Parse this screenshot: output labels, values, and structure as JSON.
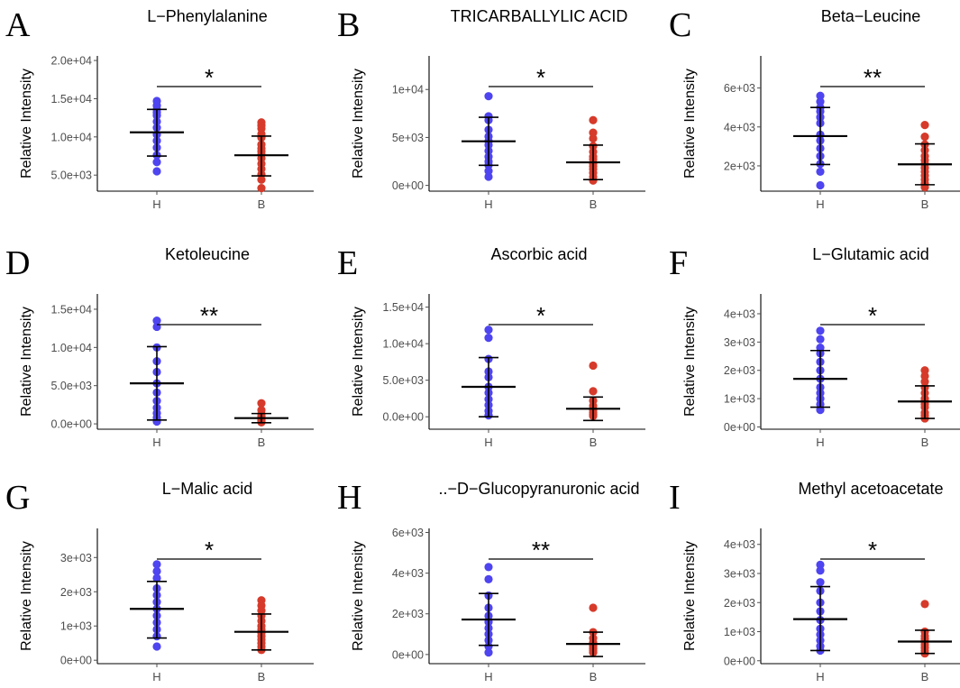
{
  "colors": {
    "H": "#4e44f0",
    "B": "#d63a2a",
    "axis": "#000000",
    "tick": "#4d4d4d"
  },
  "chart_data": [
    {
      "type": "scatter",
      "letter": "A",
      "title": "L−Phenylalanine",
      "xlabel": "",
      "ylabel": "Relative Intensity",
      "categories": [
        "H",
        "B"
      ],
      "ylim": [
        2900,
        20600
      ],
      "ticks": [
        5000,
        10000,
        15000,
        20000
      ],
      "tick_labels": [
        "5.0e+03",
        "1.0e+04",
        "1.5e+04",
        "2.0e+04"
      ],
      "significance": "*",
      "series": [
        {
          "name": "H",
          "mean": 10600,
          "sd_low": 7500,
          "sd_high": 13600,
          "values": [
            14700,
            14100,
            13600,
            13200,
            12800,
            12000,
            11200,
            10300,
            9500,
            8600,
            7600,
            6700,
            5500
          ]
        },
        {
          "name": "B",
          "mean": 7600,
          "sd_low": 4900,
          "sd_high": 10100,
          "values": [
            11900,
            11500,
            11100,
            10400,
            9900,
            9000,
            8500,
            8100,
            7700,
            7200,
            6500,
            5800,
            5100,
            4400,
            3300
          ]
        }
      ]
    },
    {
      "type": "scatter",
      "letter": "B",
      "title": "TRICARBALLYLIC ACID",
      "xlabel": "",
      "ylabel": "Relative Intensity",
      "categories": [
        "H",
        "B"
      ],
      "ylim": [
        -600,
        13500
      ],
      "ticks": [
        0,
        5000,
        10000
      ],
      "tick_labels": [
        "0e+00",
        "5e+03",
        "1e+04"
      ],
      "significance": "*",
      "series": [
        {
          "name": "H",
          "mean": 4600,
          "sd_low": 2100,
          "sd_high": 7100,
          "values": [
            9300,
            7200,
            6800,
            5800,
            5100,
            4600,
            4200,
            3600,
            3000,
            2500,
            2100,
            1500,
            900
          ]
        },
        {
          "name": "B",
          "mean": 2400,
          "sd_low": 600,
          "sd_high": 4200,
          "values": [
            6800,
            5500,
            4900,
            4100,
            3500,
            3000,
            2700,
            2300,
            2000,
            1700,
            1300,
            900,
            500
          ]
        }
      ]
    },
    {
      "type": "scatter",
      "letter": "C",
      "title": "Beta−Leucine",
      "xlabel": "",
      "ylabel": "Relative Intensity",
      "categories": [
        "H",
        "B"
      ],
      "ylim": [
        700,
        7650
      ],
      "ticks": [
        2000,
        4000,
        6000
      ],
      "tick_labels": [
        "2e+03",
        "4e+03",
        "6e+03"
      ],
      "significance": "**",
      "series": [
        {
          "name": "H",
          "mean": 3530,
          "sd_low": 2070,
          "sd_high": 5000,
          "values": [
            5600,
            5300,
            5000,
            4800,
            4500,
            4200,
            3600,
            3300,
            2900,
            2500,
            2100,
            1700,
            1000
          ]
        },
        {
          "name": "B",
          "mean": 2080,
          "sd_low": 1030,
          "sd_high": 3130,
          "values": [
            4100,
            3500,
            3100,
            2800,
            2500,
            2300,
            2100,
            1900,
            1700,
            1500,
            1300,
            1100,
            900
          ]
        }
      ]
    },
    {
      "type": "scatter",
      "letter": "D",
      "title": "Ketoleucine",
      "xlabel": "",
      "ylabel": "Relative Intensity",
      "categories": [
        "H",
        "B"
      ],
      "ylim": [
        -700,
        17000
      ],
      "ticks": [
        0,
        5000,
        10000,
        15000
      ],
      "tick_labels": [
        "0.0e+00",
        "5.0e+03",
        "1.0e+04",
        "1.5e+04"
      ],
      "significance": "**",
      "series": [
        {
          "name": "H",
          "mean": 5300,
          "sd_low": 500,
          "sd_high": 10100,
          "values": [
            13500,
            12700,
            10000,
            8200,
            6800,
            5300,
            4100,
            3000,
            2100,
            1400,
            800,
            300
          ]
        },
        {
          "name": "B",
          "mean": 750,
          "sd_low": 150,
          "sd_high": 1350,
          "values": [
            2700,
            1800,
            1300,
            1000,
            800,
            600,
            500,
            400,
            300,
            200
          ]
        }
      ]
    },
    {
      "type": "scatter",
      "letter": "E",
      "title": "Ascorbic acid",
      "xlabel": "",
      "ylabel": "Relative Intensity",
      "categories": [
        "H",
        "B"
      ],
      "ylim": [
        -1700,
        16800
      ],
      "ticks": [
        0,
        5000,
        10000,
        15000
      ],
      "tick_labels": [
        "0.0e+00",
        "5.0e+03",
        "1.0e+04",
        "1.5e+04"
      ],
      "significance": "*",
      "series": [
        {
          "name": "H",
          "mean": 4100,
          "sd_low": 0,
          "sd_high": 8100,
          "values": [
            11900,
            10800,
            7900,
            6200,
            5400,
            4100,
            3300,
            2400,
            1600,
            800,
            200
          ]
        },
        {
          "name": "B",
          "mean": 1100,
          "sd_low": -500,
          "sd_high": 2700,
          "values": [
            7000,
            3500,
            2200,
            1500,
            1000,
            600,
            300,
            100
          ]
        }
      ]
    },
    {
      "type": "scatter",
      "letter": "F",
      "title": "L−Glutamic acid",
      "xlabel": "",
      "ylabel": "Relative Intensity",
      "categories": [
        "H",
        "B"
      ],
      "ylim": [
        -80,
        4700
      ],
      "ticks": [
        0,
        1000,
        2000,
        3000,
        4000
      ],
      "tick_labels": [
        "0e+00",
        "1e+03",
        "2e+03",
        "3e+03",
        "4e+03"
      ],
      "significance": "*",
      "series": [
        {
          "name": "H",
          "mean": 1700,
          "sd_low": 700,
          "sd_high": 2700,
          "values": [
            3400,
            3100,
            2800,
            2600,
            2300,
            2000,
            1700,
            1400,
            1200,
            1000,
            800,
            600
          ]
        },
        {
          "name": "B",
          "mean": 900,
          "sd_low": 300,
          "sd_high": 1450,
          "values": [
            2000,
            1800,
            1600,
            1400,
            1200,
            1000,
            900,
            800,
            700,
            500,
            400,
            300
          ]
        }
      ]
    },
    {
      "type": "scatter",
      "letter": "G",
      "title": "L−Malic acid",
      "xlabel": "",
      "ylabel": "Relative Intensity",
      "categories": [
        "H",
        "B"
      ],
      "ylim": [
        -100,
        3850
      ],
      "ticks": [
        0,
        1000,
        2000,
        3000
      ],
      "tick_labels": [
        "0e+00",
        "1e+03",
        "2e+03",
        "3e+03"
      ],
      "significance": "*",
      "series": [
        {
          "name": "H",
          "mean": 1500,
          "sd_low": 650,
          "sd_high": 2300,
          "values": [
            2800,
            2600,
            2400,
            2100,
            1900,
            1700,
            1500,
            1300,
            1100,
            900,
            700,
            400
          ]
        },
        {
          "name": "B",
          "mean": 830,
          "sd_low": 300,
          "sd_high": 1350,
          "values": [
            1750,
            1600,
            1450,
            1300,
            1150,
            1000,
            900,
            800,
            700,
            600,
            500,
            400,
            300
          ]
        }
      ]
    },
    {
      "type": "scatter",
      "letter": "H",
      "title": "..−D−Glucopyranuronic acid",
      "xlabel": "",
      "ylabel": "Relative Intensity",
      "categories": [
        "H",
        "B"
      ],
      "ylim": [
        -450,
        6200
      ],
      "ticks": [
        0,
        2000,
        4000,
        6000
      ],
      "tick_labels": [
        "0e+00",
        "2e+03",
        "4e+03",
        "6e+03"
      ],
      "significance": "**",
      "series": [
        {
          "name": "H",
          "mean": 1720,
          "sd_low": 450,
          "sd_high": 3000,
          "values": [
            4300,
            3700,
            2900,
            2300,
            1900,
            1600,
            1300,
            1000,
            700,
            400,
            100
          ]
        },
        {
          "name": "B",
          "mean": 520,
          "sd_low": -100,
          "sd_high": 1100,
          "values": [
            2300,
            1100,
            800,
            600,
            500,
            400,
            300,
            200,
            100
          ]
        }
      ]
    },
    {
      "type": "scatter",
      "letter": "I",
      "title": "Methyl acetoacetate",
      "xlabel": "",
      "ylabel": "Relative Intensity",
      "categories": [
        "H",
        "B"
      ],
      "ylim": [
        -100,
        4550
      ],
      "ticks": [
        0,
        1000,
        2000,
        3000,
        4000
      ],
      "tick_labels": [
        "0e+00",
        "1e+03",
        "2e+03",
        "3e+03",
        "4e+03"
      ],
      "significance": "*",
      "series": [
        {
          "name": "H",
          "mean": 1430,
          "sd_low": 350,
          "sd_high": 2550,
          "values": [
            3300,
            3100,
            2700,
            2400,
            2000,
            1700,
            1400,
            1100,
            900,
            700,
            500,
            350
          ]
        },
        {
          "name": "B",
          "mean": 660,
          "sd_low": 250,
          "sd_high": 1050,
          "values": [
            1950,
            1000,
            850,
            750,
            650,
            550,
            450,
            350,
            250
          ]
        }
      ]
    }
  ]
}
